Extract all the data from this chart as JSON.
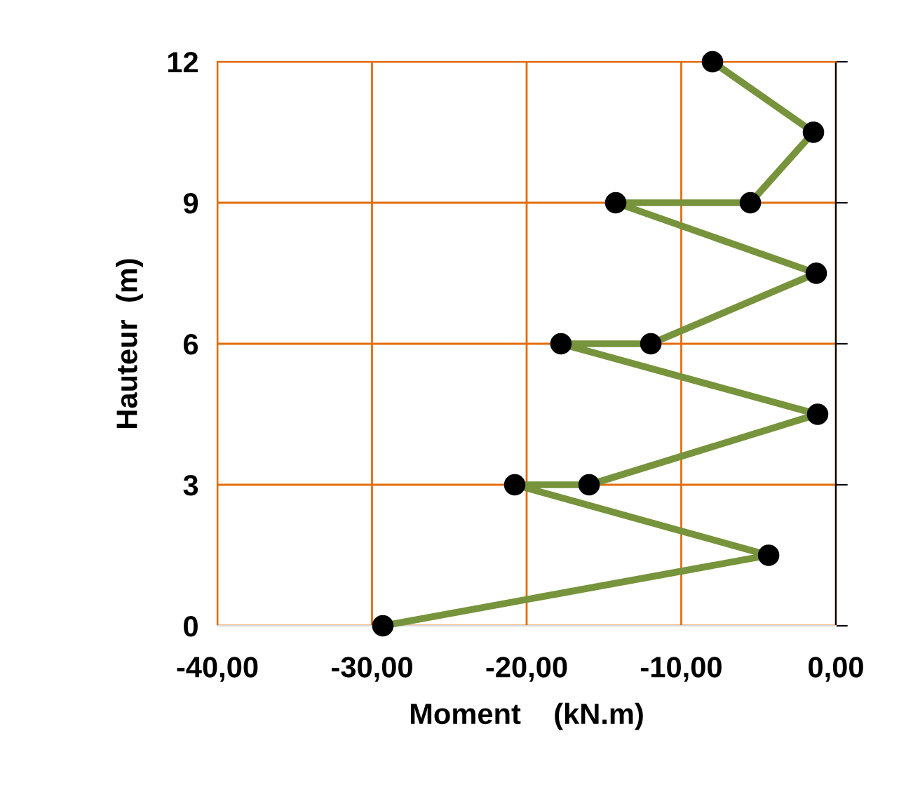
{
  "chart_data": {
    "type": "line",
    "xlabel": "Moment    (kN.m)",
    "ylabel": "Hauteur  (m)",
    "series": [
      {
        "color": "#77933c",
        "x": [
          -29.3,
          -4.35,
          -20.77,
          -15.96,
          -1.18,
          -17.78,
          -11.97,
          -1.27,
          -14.24,
          -5.53,
          -1.45,
          -7.98
        ],
        "values": [
          0,
          1.5,
          3,
          3,
          4.5,
          6,
          6,
          7.5,
          9,
          9,
          10.5,
          12
        ]
      }
    ],
    "xlim": [
      -40,
      0
    ],
    "xticks": [
      {
        "value": -40,
        "label": "-40,00"
      },
      {
        "value": -30,
        "label": "-30,00"
      },
      {
        "value": -20,
        "label": "-20,00"
      },
      {
        "value": -10,
        "label": "-10,00"
      },
      {
        "value": 0,
        "label": "0,00"
      }
    ],
    "ylim": [
      0,
      12
    ],
    "yticks": [
      0,
      3,
      6,
      9,
      12
    ],
    "grid": true,
    "marker": "circle",
    "line_style": "solid"
  }
}
